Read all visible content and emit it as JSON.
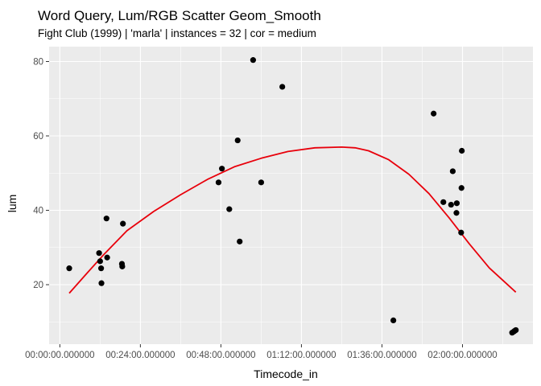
{
  "chart_data": {
    "type": "scatter",
    "title": "Word Query, Lum/RGB Scatter Geom_Smooth",
    "subtitle": "Fight Club (1999)  |  'marla'  |  instances = 32  |  cor = medium",
    "xlabel": "Timecode_in",
    "ylabel": "lum",
    "x_unit": "minutes",
    "xlim": [
      -3.2,
      141
    ],
    "ylim": [
      4,
      84
    ],
    "x_ticks": [
      {
        "value": 0,
        "label": "00:00:00.000000"
      },
      {
        "value": 24,
        "label": "00:24:00.000000"
      },
      {
        "value": 48,
        "label": "00:48:00.000000"
      },
      {
        "value": 72,
        "label": "01:12:00.000000"
      },
      {
        "value": 96,
        "label": "01:36:00.000000"
      },
      {
        "value": 120,
        "label": "02:00:00.000000"
      }
    ],
    "y_ticks": [
      {
        "value": 20,
        "label": "20"
      },
      {
        "value": 40,
        "label": "40"
      },
      {
        "value": 60,
        "label": "60"
      },
      {
        "value": 80,
        "label": "80"
      }
    ],
    "minor_y": [
      10,
      30,
      50,
      70
    ],
    "minor_x": [
      12,
      36,
      60,
      84,
      108,
      132
    ],
    "grid": true,
    "point_color": "#000000",
    "smooth_color": "#e8000b",
    "panel_color": "#ebebeb",
    "grid_color": "#ffffff",
    "points": [
      {
        "x": 2.8,
        "y": 24.4
      },
      {
        "x": 11.7,
        "y": 28.5
      },
      {
        "x": 12.0,
        "y": 26.3
      },
      {
        "x": 12.3,
        "y": 24.4
      },
      {
        "x": 12.4,
        "y": 20.4
      },
      {
        "x": 13.9,
        "y": 37.8
      },
      {
        "x": 14.1,
        "y": 27.3
      },
      {
        "x": 18.5,
        "y": 25.6
      },
      {
        "x": 18.6,
        "y": 24.9
      },
      {
        "x": 18.8,
        "y": 36.4
      },
      {
        "x": 47.3,
        "y": 47.5
      },
      {
        "x": 48.3,
        "y": 51.2
      },
      {
        "x": 50.5,
        "y": 40.3
      },
      {
        "x": 53.0,
        "y": 58.8
      },
      {
        "x": 53.6,
        "y": 31.6
      },
      {
        "x": 57.6,
        "y": 80.4
      },
      {
        "x": 60.0,
        "y": 47.5
      },
      {
        "x": 66.3,
        "y": 73.2
      },
      {
        "x": 99.4,
        "y": 10.4
      },
      {
        "x": 111.4,
        "y": 66.0
      },
      {
        "x": 114.3,
        "y": 42.2
      },
      {
        "x": 116.6,
        "y": 41.5
      },
      {
        "x": 117.1,
        "y": 50.5
      },
      {
        "x": 118.3,
        "y": 41.9
      },
      {
        "x": 118.2,
        "y": 39.3
      },
      {
        "x": 119.6,
        "y": 34.0
      },
      {
        "x": 119.7,
        "y": 46.0
      },
      {
        "x": 119.8,
        "y": 56.0
      },
      {
        "x": 134.8,
        "y": 7.1
      },
      {
        "x": 135.3,
        "y": 7.4
      },
      {
        "x": 135.6,
        "y": 7.6
      },
      {
        "x": 135.9,
        "y": 7.8
      }
    ],
    "smooth": {
      "x": [
        2.8,
        8,
        13,
        20,
        28,
        36,
        44,
        52,
        60,
        68,
        76,
        84,
        88,
        92,
        98,
        104,
        110,
        116,
        122,
        128,
        135.9
      ],
      "y": [
        17.7,
        23.0,
        28.0,
        34.5,
        39.7,
        44.2,
        48.3,
        51.7,
        54.0,
        55.8,
        56.8,
        57.0,
        56.8,
        56.0,
        53.6,
        49.7,
        44.5,
        38.0,
        31.0,
        24.5,
        18.0
      ]
    }
  }
}
